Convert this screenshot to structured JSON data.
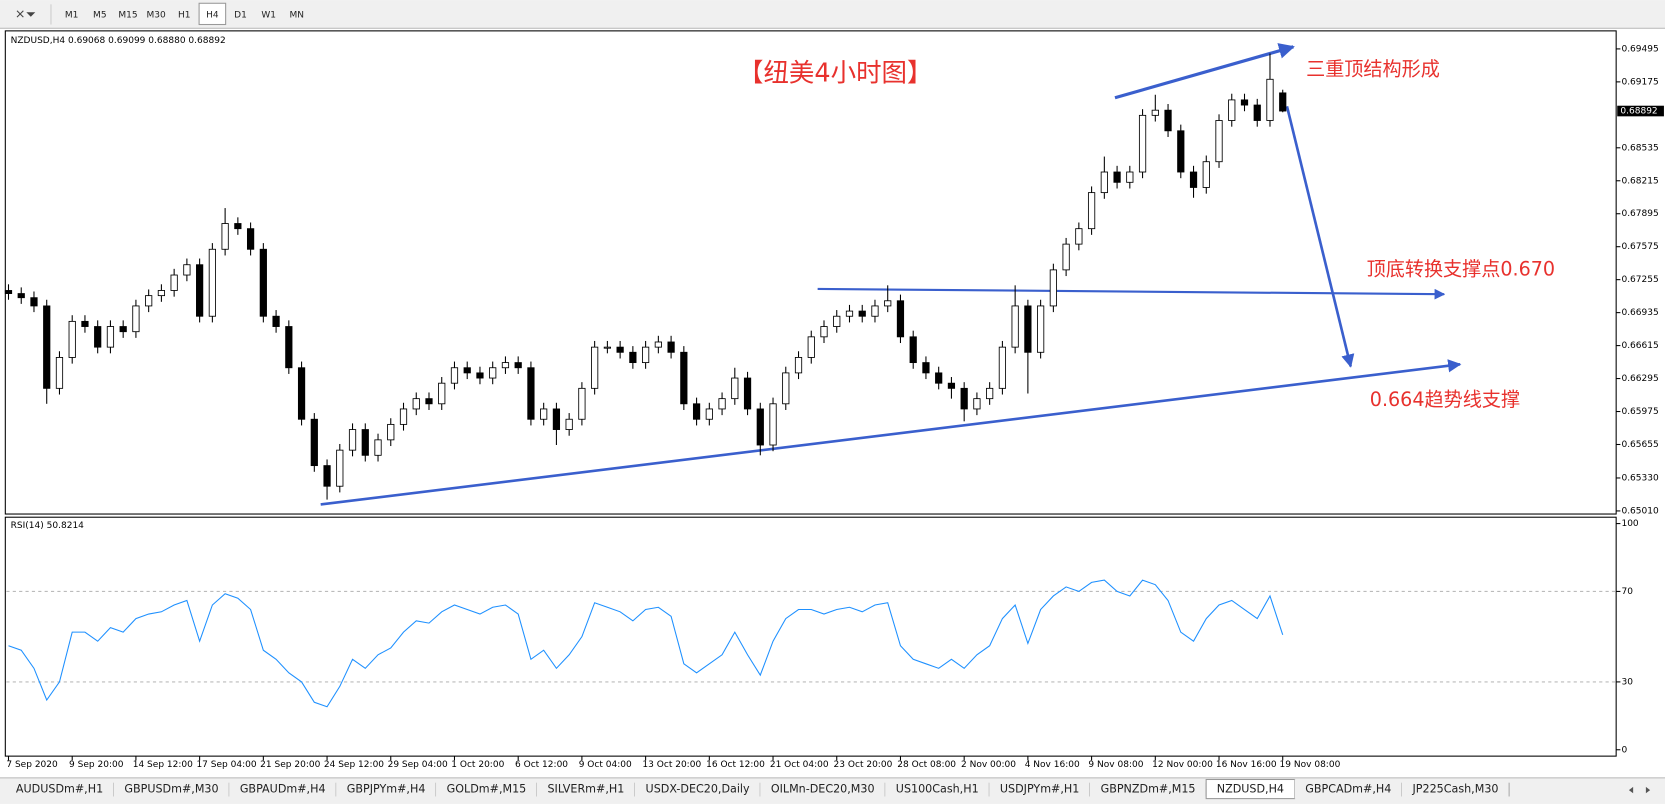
{
  "toolbar": {
    "timeframes": [
      "M1",
      "M5",
      "M15",
      "M30",
      "H1",
      "H4",
      "D1",
      "W1",
      "MN"
    ]
  },
  "chart_data": [
    {
      "type": "candlestick",
      "subtitle": "NZDUSD,H4  0.69068 0.69099 0.68880 0.68892",
      "title": "【纽美4小时图】",
      "annotations": [
        "三重顶结构形成",
        "顶底转换支撑点0.670",
        "0.664趋势线支撑"
      ],
      "xtick_labels": [
        "7 Sep 2020",
        "9 Sep 20:00",
        "14 Sep 12:00",
        "17 Sep 04:00",
        "21 Sep 20:00",
        "24 Sep 12:00",
        "29 Sep 04:00",
        "1 Oct 20:00",
        "6 Oct 12:00",
        "9 Oct 04:00",
        "13 Oct 20:00",
        "16 Oct 12:00",
        "21 Oct 04:00",
        "23 Oct 20:00",
        "28 Oct 08:00",
        "2 Nov 00:00",
        "4 Nov 16:00",
        "9 Nov 08:00",
        "12 Nov 00:00",
        "16 Nov 16:00",
        "19 Nov 08:00"
      ],
      "open": [
        0.6715,
        0.6712,
        0.6708,
        0.67,
        0.662,
        0.665,
        0.6685,
        0.668,
        0.666,
        0.668,
        0.6675,
        0.67,
        0.671,
        0.6715,
        0.673,
        0.674,
        0.669,
        0.6755,
        0.678,
        0.6775,
        0.6755,
        0.669,
        0.668,
        0.664,
        0.659,
        0.6545,
        0.6525,
        0.656,
        0.658,
        0.6555,
        0.657,
        0.6585,
        0.66,
        0.661,
        0.6605,
        0.6625,
        0.664,
        0.6635,
        0.663,
        0.664,
        0.6645,
        0.664,
        0.659,
        0.66,
        0.658,
        0.659,
        0.662,
        0.666,
        0.666,
        0.6655,
        0.6645,
        0.666,
        0.6665,
        0.6655,
        0.6605,
        0.659,
        0.66,
        0.661,
        0.663,
        0.66,
        0.6565,
        0.6605,
        0.6635,
        0.665,
        0.667,
        0.668,
        0.669,
        0.6695,
        0.669,
        0.67,
        0.6705,
        0.667,
        0.6645,
        0.6635,
        0.6625,
        0.662,
        0.66,
        0.661,
        0.662,
        0.666,
        0.67,
        0.6655,
        0.67,
        0.6735,
        0.676,
        0.6775,
        0.681,
        0.683,
        0.682,
        0.683,
        0.6885,
        0.689,
        0.687,
        0.683,
        0.6815,
        0.684,
        0.688,
        0.69,
        0.6895,
        0.688,
        0.69068
      ],
      "high": [
        0.6721,
        0.6718,
        0.6714,
        0.6706,
        0.6656,
        0.6691,
        0.6691,
        0.6686,
        0.6686,
        0.6686,
        0.6706,
        0.6716,
        0.6721,
        0.6736,
        0.6746,
        0.6746,
        0.6761,
        0.6795,
        0.6786,
        0.6781,
        0.6761,
        0.6696,
        0.6686,
        0.6646,
        0.6596,
        0.6551,
        0.6566,
        0.6586,
        0.6586,
        0.6576,
        0.6591,
        0.6606,
        0.6616,
        0.6616,
        0.6631,
        0.6646,
        0.6646,
        0.6641,
        0.6646,
        0.6651,
        0.6651,
        0.6646,
        0.6606,
        0.6606,
        0.6596,
        0.6626,
        0.6666,
        0.6666,
        0.6666,
        0.6661,
        0.6666,
        0.6671,
        0.6671,
        0.6661,
        0.6611,
        0.6606,
        0.6616,
        0.664,
        0.6636,
        0.6606,
        0.6611,
        0.6641,
        0.6656,
        0.6676,
        0.6686,
        0.6696,
        0.6701,
        0.6701,
        0.6706,
        0.672,
        0.6711,
        0.6676,
        0.6651,
        0.6641,
        0.6631,
        0.6626,
        0.6616,
        0.6626,
        0.6666,
        0.672,
        0.6706,
        0.6706,
        0.6741,
        0.6766,
        0.6781,
        0.6816,
        0.6845,
        0.6836,
        0.6836,
        0.6891,
        0.6905,
        0.6896,
        0.6876,
        0.6836,
        0.6846,
        0.6886,
        0.6906,
        0.6906,
        0.6901,
        0.6945,
        0.69099
      ],
      "low": [
        0.6706,
        0.6702,
        0.6694,
        0.6605,
        0.6614,
        0.6644,
        0.6674,
        0.6654,
        0.6654,
        0.6669,
        0.6669,
        0.6694,
        0.6704,
        0.6709,
        0.6724,
        0.6684,
        0.6684,
        0.6749,
        0.6769,
        0.6749,
        0.6684,
        0.6674,
        0.6634,
        0.6584,
        0.6539,
        0.6512,
        0.6519,
        0.6554,
        0.6549,
        0.6549,
        0.6564,
        0.6579,
        0.6594,
        0.6599,
        0.6599,
        0.6619,
        0.6629,
        0.6624,
        0.6624,
        0.6634,
        0.6634,
        0.6584,
        0.6584,
        0.6565,
        0.6574,
        0.6584,
        0.6614,
        0.6654,
        0.6649,
        0.6639,
        0.6639,
        0.6654,
        0.6649,
        0.6599,
        0.6584,
        0.6584,
        0.6594,
        0.6604,
        0.6594,
        0.6555,
        0.6559,
        0.6599,
        0.6629,
        0.6644,
        0.6664,
        0.6674,
        0.6684,
        0.6684,
        0.6684,
        0.6694,
        0.6664,
        0.6639,
        0.6629,
        0.6619,
        0.661,
        0.6588,
        0.6594,
        0.6604,
        0.6614,
        0.6654,
        0.6615,
        0.6649,
        0.6694,
        0.6729,
        0.6754,
        0.6769,
        0.6804,
        0.6814,
        0.6814,
        0.6824,
        0.6879,
        0.6864,
        0.6824,
        0.6805,
        0.6809,
        0.6834,
        0.6874,
        0.6889,
        0.6874,
        0.6874,
        0.6888
      ],
      "close": [
        0.6712,
        0.6708,
        0.67,
        0.662,
        0.665,
        0.6685,
        0.668,
        0.666,
        0.668,
        0.6675,
        0.67,
        0.671,
        0.6715,
        0.673,
        0.674,
        0.669,
        0.6755,
        0.678,
        0.6775,
        0.6755,
        0.669,
        0.668,
        0.664,
        0.659,
        0.6545,
        0.6525,
        0.656,
        0.658,
        0.6555,
        0.657,
        0.6585,
        0.66,
        0.661,
        0.6605,
        0.6625,
        0.664,
        0.6635,
        0.663,
        0.664,
        0.6645,
        0.664,
        0.659,
        0.66,
        0.658,
        0.659,
        0.662,
        0.666,
        0.666,
        0.6655,
        0.6645,
        0.666,
        0.6665,
        0.6655,
        0.6605,
        0.659,
        0.66,
        0.661,
        0.663,
        0.66,
        0.6565,
        0.6605,
        0.6635,
        0.665,
        0.667,
        0.668,
        0.669,
        0.6695,
        0.669,
        0.67,
        0.6705,
        0.667,
        0.6645,
        0.6635,
        0.6625,
        0.662,
        0.66,
        0.661,
        0.662,
        0.666,
        0.67,
        0.6655,
        0.67,
        0.6735,
        0.676,
        0.6775,
        0.681,
        0.683,
        0.682,
        0.683,
        0.6885,
        0.689,
        0.687,
        0.683,
        0.6815,
        0.684,
        0.688,
        0.69,
        0.6895,
        0.688,
        0.692,
        0.68892
      ],
      "last_price": 0.68892,
      "ylim": [
        0.6498,
        0.6967
      ],
      "yticks": [
        {
          "value": 0.6501,
          "label": "0.65010"
        },
        {
          "value": 0.6533,
          "label": "0.65330"
        },
        {
          "value": 0.65655,
          "label": "0.65655"
        },
        {
          "value": 0.65975,
          "label": "0.65975"
        },
        {
          "value": 0.66295,
          "label": "0.66295"
        },
        {
          "value": 0.66615,
          "label": "0.66615"
        },
        {
          "value": 0.66935,
          "label": "0.66935"
        },
        {
          "value": 0.67255,
          "label": "0.67255"
        },
        {
          "value": 0.67575,
          "label": "0.67575"
        },
        {
          "value": 0.67895,
          "label": "0.67895"
        },
        {
          "value": 0.68215,
          "label": "0.68215"
        },
        {
          "value": 0.68535,
          "label": "0.68535"
        },
        {
          "value": 0.69175,
          "label": "0.69175"
        },
        {
          "value": 0.69495,
          "label": "0.69495"
        }
      ],
      "bull_color": "#ffffff",
      "bear_color": "#000000"
    },
    {
      "type": "line",
      "subtitle": "RSI(14) 50.8214",
      "values": [
        46,
        44,
        36,
        22,
        30,
        52,
        52,
        48,
        54,
        52,
        58,
        60,
        61,
        64,
        66,
        48,
        64,
        69,
        67,
        62,
        44,
        40,
        34,
        30,
        21,
        19,
        28,
        40,
        36,
        42,
        45,
        52,
        57,
        56,
        61,
        64,
        62,
        60,
        63,
        64,
        60,
        40,
        44,
        36,
        42,
        50,
        65,
        63,
        61,
        57,
        62,
        63,
        59,
        38,
        34,
        38,
        42,
        52,
        42,
        33,
        48,
        58,
        62,
        62,
        60,
        62,
        63,
        61,
        64,
        65,
        46,
        40,
        38,
        36,
        40,
        36,
        42,
        46,
        58,
        64,
        47,
        62,
        68,
        72,
        70,
        74,
        75,
        70,
        68,
        75,
        73,
        66,
        52,
        48,
        58,
        64,
        66,
        62,
        58,
        68,
        50.8214
      ],
      "color": "#1e90ff",
      "ylim": [
        0,
        100
      ],
      "yticks": [
        0,
        30,
        70,
        100
      ],
      "levels": [
        30,
        70
      ]
    }
  ],
  "tabs": [
    "AUDUSDm#,H1",
    "GBPUSDm#,M30",
    "GBPAUDm#,H4",
    "GBPJPYm#,H4",
    "GOLDm#,M15",
    "SILVERm#,H1",
    "USDX-DEC20,Daily",
    "OILMn-DEC20,M30",
    "US100Cash,H1",
    "USDJPYm#,H1",
    "GBPNZDm#,M15",
    "NZDUSD,H4",
    "GBPCADm#,H4",
    "JP225Cash,M30"
  ]
}
